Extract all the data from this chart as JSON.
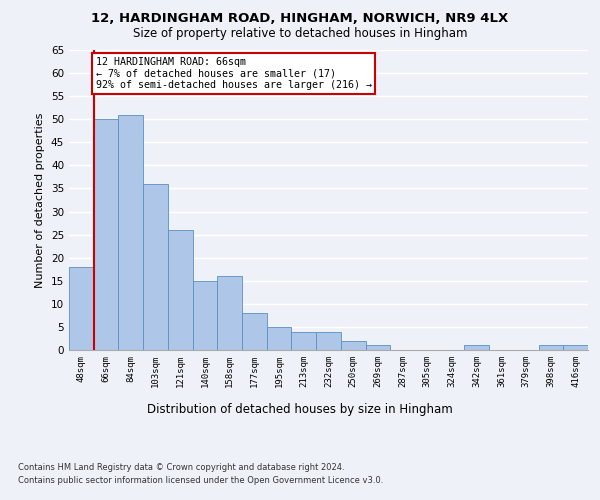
{
  "title_line1": "12, HARDINGHAM ROAD, HINGHAM, NORWICH, NR9 4LX",
  "title_line2": "Size of property relative to detached houses in Hingham",
  "xlabel": "Distribution of detached houses by size in Hingham",
  "ylabel": "Number of detached properties",
  "categories": [
    "48sqm",
    "66sqm",
    "84sqm",
    "103sqm",
    "121sqm",
    "140sqm",
    "158sqm",
    "177sqm",
    "195sqm",
    "213sqm",
    "232sqm",
    "250sqm",
    "269sqm",
    "287sqm",
    "305sqm",
    "324sqm",
    "342sqm",
    "361sqm",
    "379sqm",
    "398sqm",
    "416sqm"
  ],
  "values": [
    18,
    50,
    51,
    36,
    26,
    15,
    16,
    8,
    5,
    4,
    4,
    2,
    1,
    0,
    0,
    0,
    1,
    0,
    0,
    1,
    1
  ],
  "bar_color": "#aec6e8",
  "bar_edge_color": "#5a8fc2",
  "highlight_index": 1,
  "highlight_line_color": "#cc0000",
  "annotation_text": "12 HARDINGHAM ROAD: 66sqm\n← 7% of detached houses are smaller (17)\n92% of semi-detached houses are larger (216) →",
  "annotation_box_color": "#ffffff",
  "annotation_box_edge_color": "#cc0000",
  "ylim": [
    0,
    65
  ],
  "yticks": [
    0,
    5,
    10,
    15,
    20,
    25,
    30,
    35,
    40,
    45,
    50,
    55,
    60,
    65
  ],
  "footer_line1": "Contains HM Land Registry data © Crown copyright and database right 2024.",
  "footer_line2": "Contains public sector information licensed under the Open Government Licence v3.0.",
  "background_color": "#eef2f8",
  "grid_color": "#ffffff"
}
